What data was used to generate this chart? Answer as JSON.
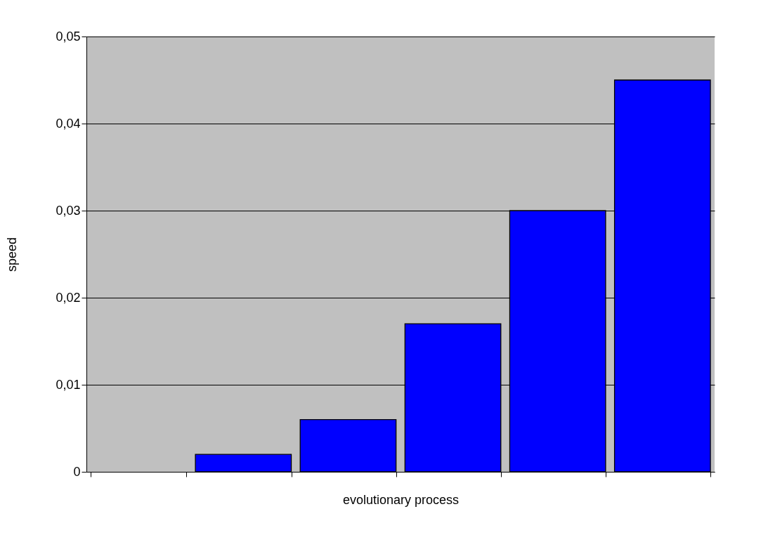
{
  "chart_data": {
    "type": "bar",
    "xlabel": "evolutionary process",
    "ylabel": "speed",
    "categories": [
      null,
      null,
      null,
      null,
      null,
      null
    ],
    "values": [
      null,
      0.002,
      0.006,
      0.017,
      0.03,
      0.045
    ],
    "color": "#0000ff",
    "ylim": [
      0,
      0.05
    ],
    "yticks": [
      0,
      {
        "value": 0.01,
        "label": "0,01"
      },
      {
        "value": 0.02,
        "label": "0,02"
      },
      {
        "value": 0.03,
        "label": "0,03"
      },
      {
        "value": 0.04,
        "label": "0,04"
      },
      {
        "value": 0.05,
        "label": "0,05"
      }
    ],
    "grid": "y"
  }
}
